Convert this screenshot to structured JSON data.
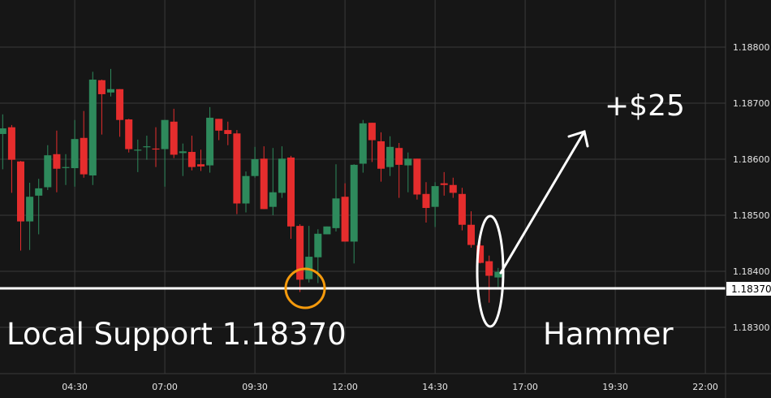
{
  "chart_data": {
    "type": "candlestick",
    "interval_minutes": 15,
    "title": "",
    "xlabel": "",
    "ylabel": "",
    "ylim": [
      1.18237,
      1.18884
    ],
    "grid": true,
    "x_ticks": [
      "04:30",
      "07:00",
      "09:30",
      "12:00",
      "14:30",
      "17:00",
      "19:30",
      "22:00"
    ],
    "y_ticks": [
      "1.18800",
      "1.18700",
      "1.18600",
      "1.18500",
      "1.18400",
      "1.18300"
    ],
    "colors": {
      "up": "#2e8a5c",
      "down": "#e52d2d",
      "background": "#161616",
      "grid": "#3a3a3a",
      "annotation": "#ffffff",
      "support_circle": "#f59a0c"
    },
    "start_time": "02:30",
    "candles": [
      [
        1.18645,
        1.1868,
        1.18582,
        1.18655
      ],
      [
        1.18657,
        1.18661,
        1.1854,
        1.18599
      ],
      [
        1.18596,
        1.18597,
        1.18437,
        1.18489
      ],
      [
        1.18489,
        1.18558,
        1.18438,
        1.18533
      ],
      [
        1.18535,
        1.18565,
        1.18466,
        1.18548
      ],
      [
        1.1855,
        1.18625,
        1.18545,
        1.18607
      ],
      [
        1.18609,
        1.18651,
        1.18541,
        1.18583
      ],
      [
        1.18585,
        1.18609,
        1.18554,
        1.18586
      ],
      [
        1.18584,
        1.1867,
        1.18551,
        1.18636
      ],
      [
        1.18638,
        1.18686,
        1.18567,
        1.18573
      ],
      [
        1.18571,
        1.18756,
        1.18554,
        1.18742
      ],
      [
        1.18741,
        1.18742,
        1.18644,
        1.18716
      ],
      [
        1.18719,
        1.18761,
        1.18712,
        1.18725
      ],
      [
        1.18725,
        1.18725,
        1.1864,
        1.1867
      ],
      [
        1.18671,
        1.18672,
        1.18612,
        1.18618
      ],
      [
        1.18616,
        1.18635,
        1.18577,
        1.18617
      ],
      [
        1.18622,
        1.18642,
        1.18599,
        1.18623
      ],
      [
        1.18619,
        1.18657,
        1.18586,
        1.18618
      ],
      [
        1.18618,
        1.1867,
        1.18551,
        1.1867
      ],
      [
        1.18667,
        1.1869,
        1.18602,
        1.18608
      ],
      [
        1.18611,
        1.18628,
        1.1857,
        1.18614
      ],
      [
        1.18613,
        1.18642,
        1.1858,
        1.18586
      ],
      [
        1.18591,
        1.18617,
        1.18579,
        1.18587
      ],
      [
        1.18589,
        1.18693,
        1.18576,
        1.18674
      ],
      [
        1.18672,
        1.18672,
        1.18634,
        1.18651
      ],
      [
        1.18652,
        1.18667,
        1.18625,
        1.18645
      ],
      [
        1.18646,
        1.18652,
        1.18502,
        1.18521
      ],
      [
        1.18521,
        1.18578,
        1.18505,
        1.1857
      ],
      [
        1.1857,
        1.18622,
        1.18567,
        1.186
      ],
      [
        1.18601,
        1.18623,
        1.18511,
        1.18511
      ],
      [
        1.18515,
        1.1862,
        1.185,
        1.18541
      ],
      [
        1.1854,
        1.18623,
        1.18531,
        1.18601
      ],
      [
        1.18603,
        1.18606,
        1.18458,
        1.1848
      ],
      [
        1.18481,
        1.18484,
        1.18363,
        1.18385
      ],
      [
        1.18386,
        1.18481,
        1.1838,
        1.18426
      ],
      [
        1.18425,
        1.18475,
        1.18379,
        1.18467
      ],
      [
        1.18466,
        1.1848,
        1.18466,
        1.1848
      ],
      [
        1.18477,
        1.18591,
        1.18471,
        1.1853
      ],
      [
        1.18533,
        1.18557,
        1.18453,
        1.18453
      ],
      [
        1.18453,
        1.18591,
        1.18414,
        1.1859
      ],
      [
        1.18592,
        1.1867,
        1.18576,
        1.18664
      ],
      [
        1.18665,
        1.18665,
        1.18595,
        1.18634
      ],
      [
        1.18632,
        1.18648,
        1.1856,
        1.18583
      ],
      [
        1.18586,
        1.18641,
        1.1857,
        1.18622
      ],
      [
        1.1862,
        1.18629,
        1.18531,
        1.1859
      ],
      [
        1.18589,
        1.18612,
        1.18541,
        1.18601
      ],
      [
        1.18601,
        1.18601,
        1.18528,
        1.18537
      ],
      [
        1.18538,
        1.18559,
        1.18487,
        1.18513
      ],
      [
        1.18515,
        1.18559,
        1.18479,
        1.18552
      ],
      [
        1.18557,
        1.18577,
        1.18535,
        1.18554
      ],
      [
        1.18554,
        1.18567,
        1.18531,
        1.1854
      ],
      [
        1.18538,
        1.18549,
        1.18473,
        1.18483
      ],
      [
        1.18483,
        1.18507,
        1.18442,
        1.18447
      ],
      [
        1.18446,
        1.18458,
        1.18414,
        1.18415
      ],
      [
        1.18418,
        1.18428,
        1.18344,
        1.18392
      ],
      [
        1.18389,
        1.18406,
        1.18372,
        1.18399
      ]
    ],
    "support_level": 1.1837,
    "annotations": {
      "support_label": "Local Support 1.18370",
      "pattern_label": "Hammer",
      "profit_label": "+$25",
      "price_tag": "1.18370"
    }
  }
}
